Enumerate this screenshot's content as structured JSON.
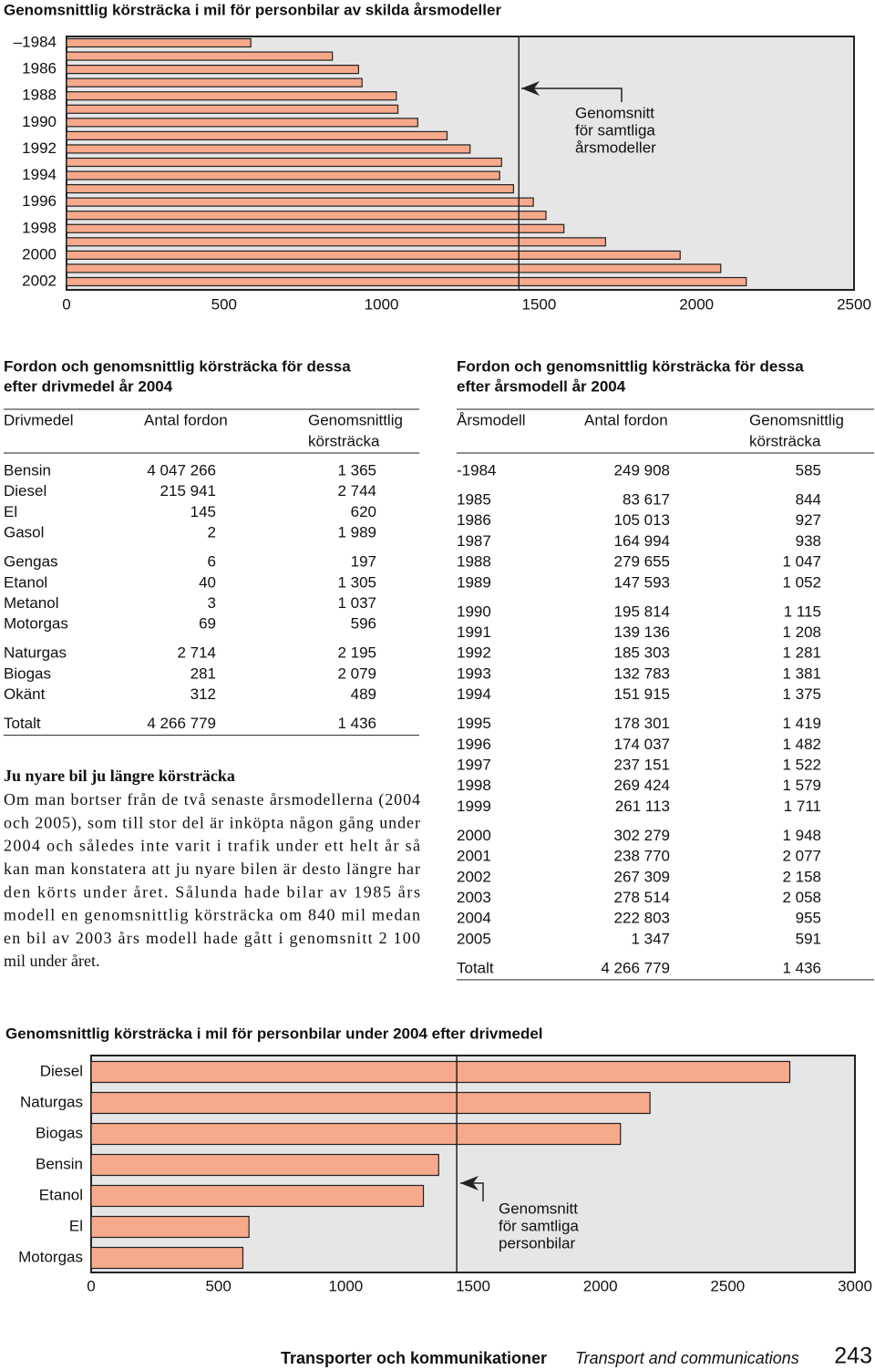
{
  "chart_data": [
    {
      "type": "bar",
      "orientation": "horizontal",
      "title": "Genomsnittlig körsträcka i mil för personbilar av skilda årsmodeller",
      "categories": [
        "–1984",
        null,
        "1986",
        null,
        "1988",
        null,
        "1990",
        null,
        "1992",
        null,
        "1994",
        null,
        "1996",
        null,
        "1998",
        null,
        "2000",
        null,
        "2002"
      ],
      "values": [
        585,
        844,
        927,
        938,
        1047,
        1052,
        1115,
        1208,
        1281,
        1381,
        1375,
        1419,
        1482,
        1522,
        1579,
        1711,
        1948,
        2077,
        2158
      ],
      "color": "#f6a98b",
      "xlim": [
        0,
        2500
      ],
      "xticks": [
        0,
        500,
        1000,
        1500,
        2000,
        2500
      ],
      "reference": {
        "value": 1436,
        "label": [
          "Genomsnitt",
          "för samtliga",
          "årsmodeller"
        ]
      }
    },
    {
      "type": "bar",
      "orientation": "horizontal",
      "title": "Genomsnittlig körsträcka i mil för personbilar under 2004 efter drivmedel",
      "categories": [
        "Diesel",
        "Naturgas",
        "Biogas",
        "Bensin",
        "Etanol",
        "El",
        "Motorgas"
      ],
      "values": [
        2744,
        2195,
        2079,
        1365,
        1305,
        620,
        596
      ],
      "color": "#f6a98b",
      "xlim": [
        0,
        3000
      ],
      "xticks": [
        0,
        500,
        1000,
        1500,
        2000,
        2500,
        3000
      ],
      "reference": {
        "value": 1436,
        "label": [
          "Genomsnitt",
          "för samtliga",
          "personbilar"
        ]
      }
    }
  ],
  "tables": [
    {
      "title": [
        "Fordon och genomsnittlig körsträcka för dessa",
        "efter drivmedel år 2004"
      ],
      "header": [
        [
          "Drivmedel"
        ],
        [
          "Antal fordon"
        ],
        [
          "Genomsnittlig",
          "körsträcka"
        ]
      ],
      "groups": [
        [
          [
            "Bensin",
            "4 047 266",
            "1 365"
          ],
          [
            "Diesel",
            "215 941",
            "2 744"
          ],
          [
            "El",
            "145",
            "620"
          ],
          [
            "Gasol",
            "2",
            "1 989"
          ]
        ],
        [
          [
            "Gengas",
            "6",
            "197"
          ],
          [
            "Etanol",
            "40",
            "1 305"
          ],
          [
            "Metanol",
            "3",
            "1 037"
          ],
          [
            "Motorgas",
            "69",
            "596"
          ]
        ],
        [
          [
            "Naturgas",
            "2 714",
            "2 195"
          ],
          [
            "Biogas",
            "281",
            "2 079"
          ],
          [
            "Okänt",
            "312",
            "489"
          ]
        ]
      ],
      "total": [
        "Totalt",
        "4 266 779",
        "1 436"
      ]
    },
    {
      "title": [
        "Fordon och genomsnittlig körsträcka för dessa",
        "efter årsmodell år 2004"
      ],
      "header": [
        [
          "Årsmodell"
        ],
        [
          "Antal fordon"
        ],
        [
          "Genomsnittlig",
          "körsträcka"
        ]
      ],
      "groups": [
        [
          [
            "-1984",
            "249 908",
            "585"
          ]
        ],
        [
          [
            "1985",
            "83 617",
            "844"
          ],
          [
            "1986",
            "105 013",
            "927"
          ],
          [
            "1987",
            "164 994",
            "938"
          ],
          [
            "1988",
            "279 655",
            "1 047"
          ],
          [
            "1989",
            "147 593",
            "1 052"
          ]
        ],
        [
          [
            "1990",
            "195 814",
            "1 115"
          ],
          [
            "1991",
            "139 136",
            "1 208"
          ],
          [
            "1992",
            "185 303",
            "1 281"
          ],
          [
            "1993",
            "132 783",
            "1 381"
          ],
          [
            "1994",
            "151 915",
            "1 375"
          ]
        ],
        [
          [
            "1995",
            "178 301",
            "1 419"
          ],
          [
            "1996",
            "174 037",
            "1 482"
          ],
          [
            "1997",
            "237 151",
            "1 522"
          ],
          [
            "1998",
            "269 424",
            "1 579"
          ],
          [
            "1999",
            "261 113",
            "1 711"
          ]
        ],
        [
          [
            "2000",
            "302 279",
            "1 948"
          ],
          [
            "2001",
            "238 770",
            "2 077"
          ],
          [
            "2002",
            "267 309",
            "2 158"
          ],
          [
            "2003",
            "278 514",
            "2 058"
          ],
          [
            "2004",
            "222 803",
            "955"
          ],
          [
            "2005",
            "1 347",
            "591"
          ]
        ]
      ],
      "total": [
        "Totalt",
        "4 266 779",
        "1 436"
      ]
    }
  ],
  "article": {
    "heading": "Ju nyare bil ju längre körsträcka",
    "lines": [
      "Om man bortser från de två senaste årsmodellerna (2004",
      "och 2005), som till stor del är inköpta någon gång under",
      "2004 och således inte varit i trafik under ett helt år så",
      "kan man konstatera att ju nyare bilen är desto längre har",
      "den körts under året. Sålunda hade bilar av 1985 års",
      "modell en genomsnittlig körsträcka om 840 mil medan",
      "en bil av 2003 års modell hade gått i genomsnitt 2 100",
      "mil under året."
    ]
  },
  "footer": {
    "section": "Transporter och kommunikationer",
    "section_en": "Transport and communications",
    "page": "243"
  }
}
